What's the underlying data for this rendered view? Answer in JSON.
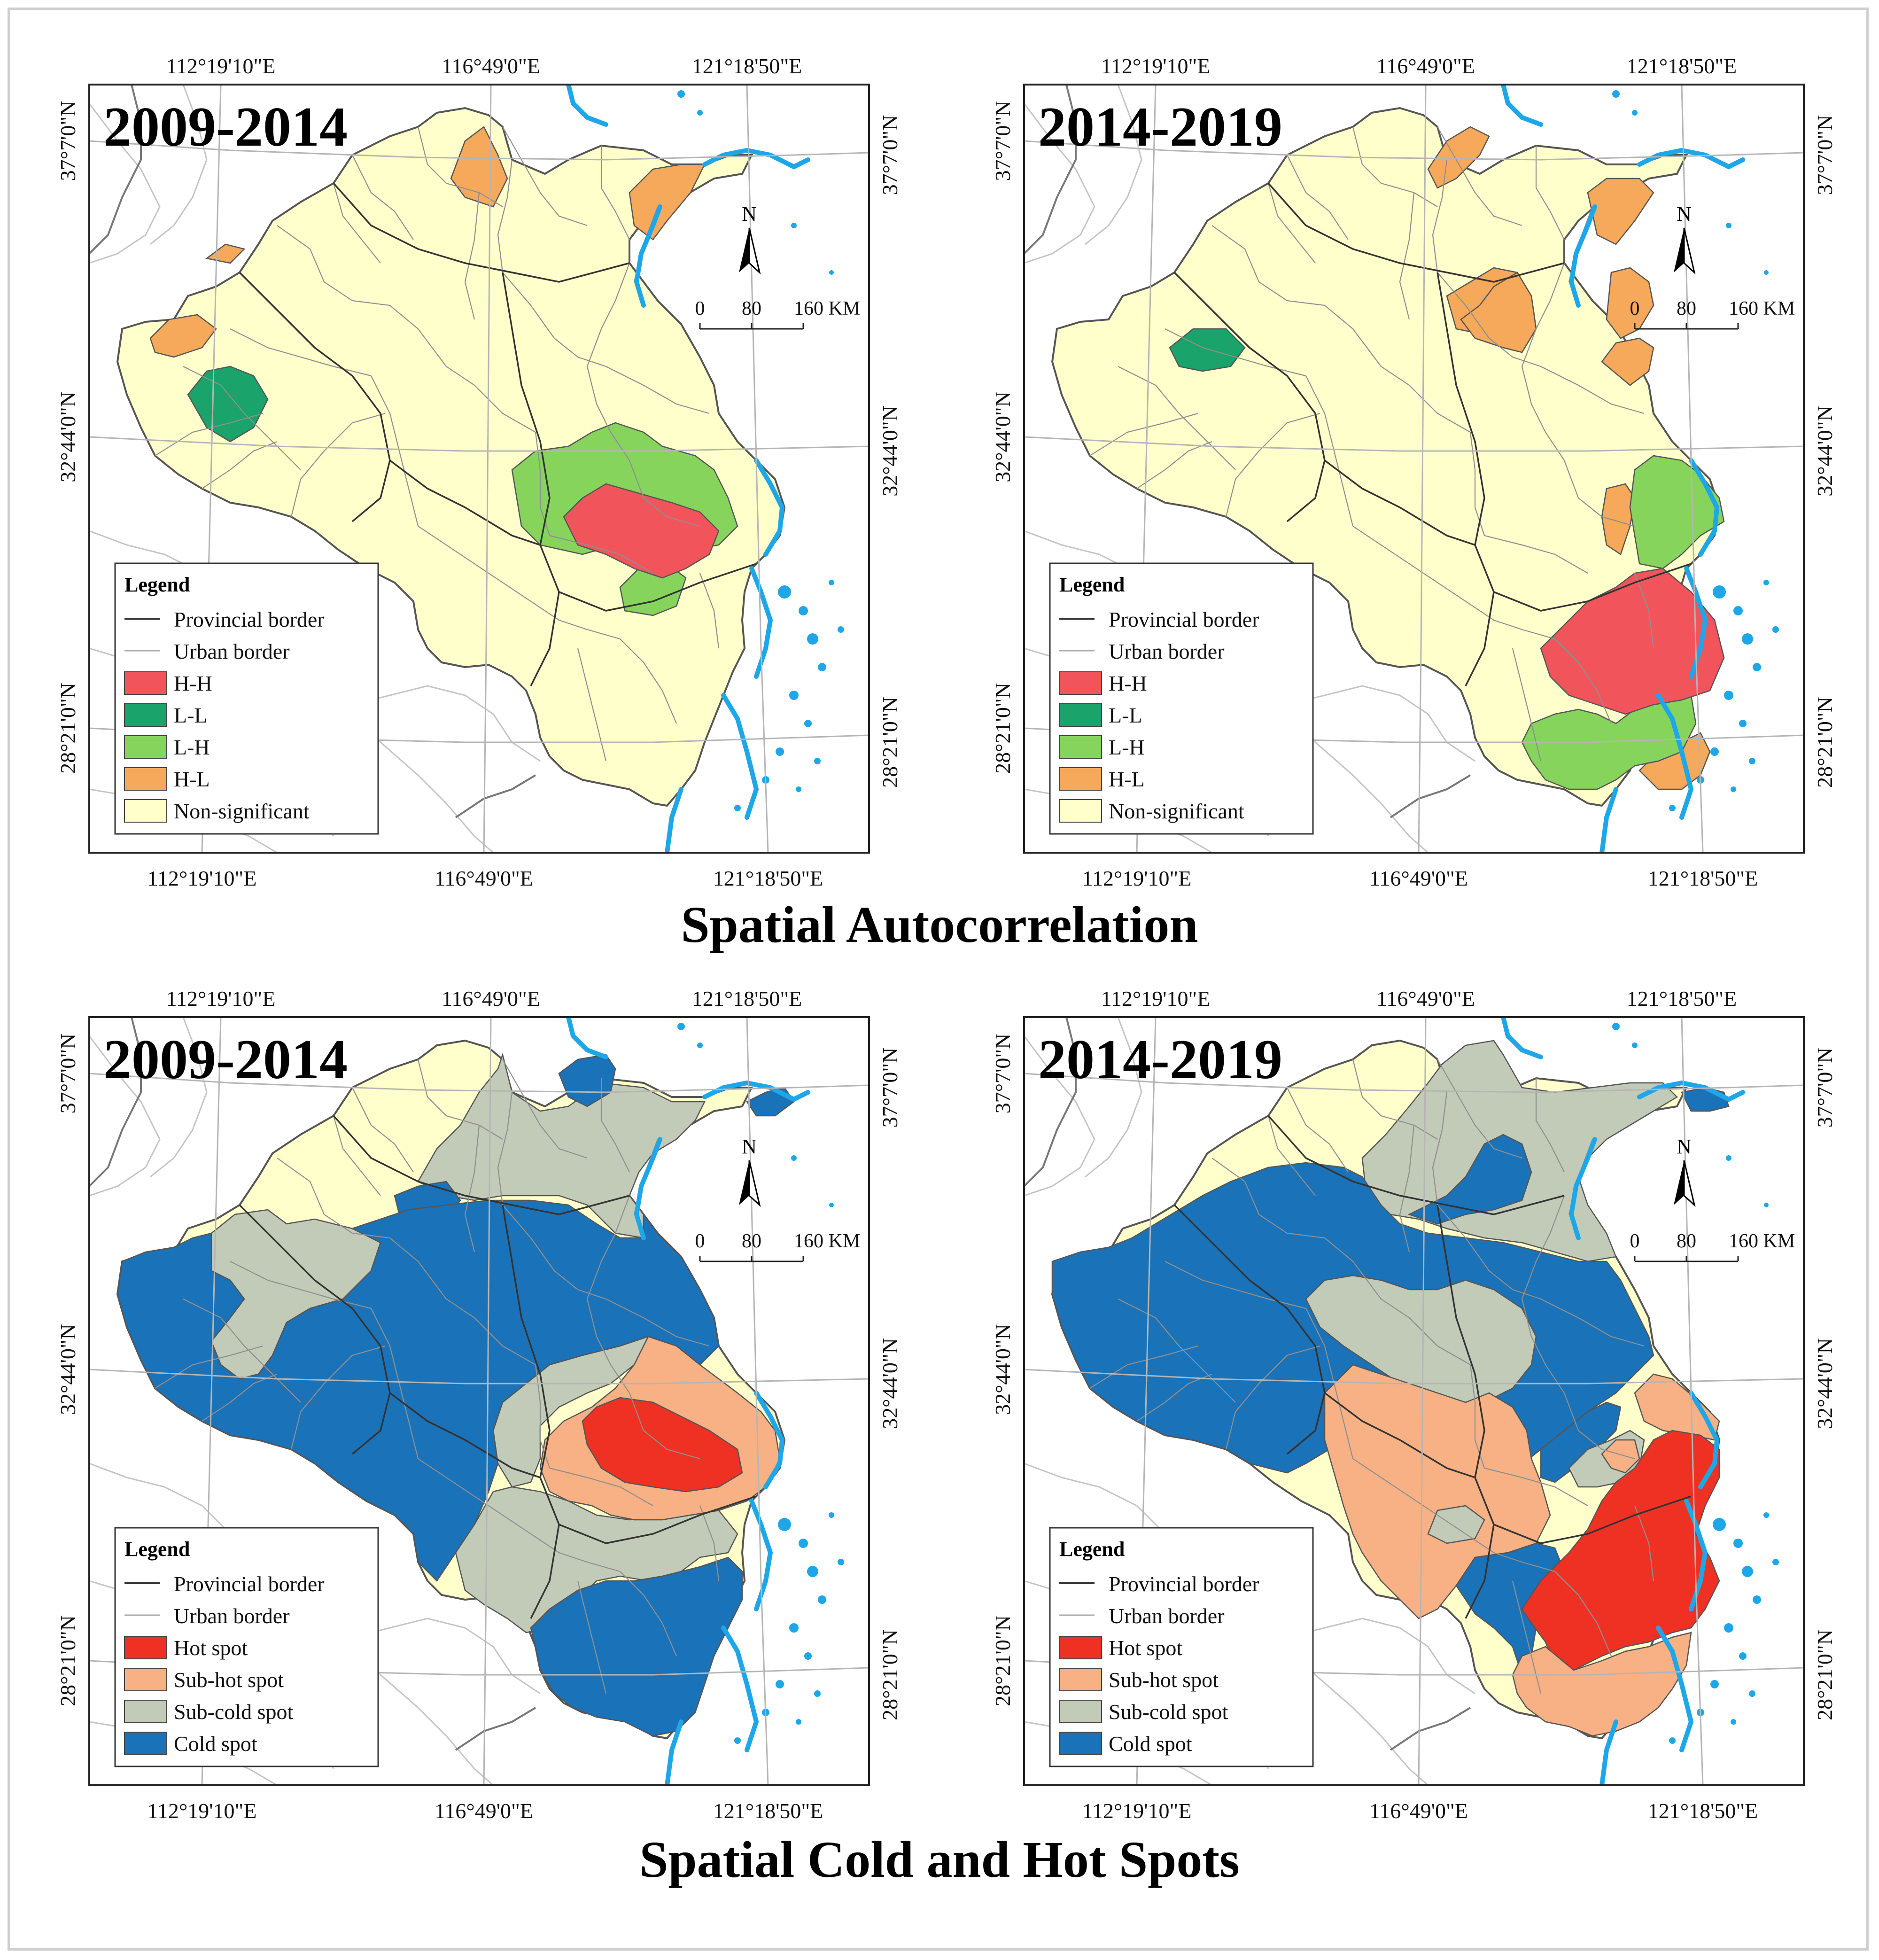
{
  "colors": {
    "frame": "#cfcfcf",
    "land": "#ffffcc",
    "outside": "#ffffff",
    "sea": "#1ea7e8",
    "hh": "#f2545b",
    "ll": "#1aa36a",
    "lh": "#86d45c",
    "hl": "#f6a95a",
    "hot": "#ef3124",
    "subhot": "#f7b184",
    "subcold": "#c2cbb8",
    "cold": "#1a72b9"
  },
  "graticule": {
    "top_lons": [
      "112°19'10\"E",
      "116°49'0\"E",
      "121°18'50\"E"
    ],
    "bottom_lons": [
      "112°19'10\"E",
      "116°49'0\"E",
      "121°18'50\"E"
    ],
    "lats": [
      "37°7'0\"N",
      "32°44'0\"N",
      "28°21'0\"N"
    ]
  },
  "scalebar": {
    "north": "N",
    "t0": "0",
    "t80": "80",
    "t160": "160 KM"
  },
  "sections": {
    "autocorrelation": "Spatial Autocorrelation",
    "hotspots": "Spatial Cold and Hot Spots"
  },
  "panels": {
    "auto_2009": {
      "period": "2009-2014",
      "legend": {
        "title": "Legend",
        "items": [
          {
            "kind": "line",
            "label": "Provincial border",
            "color": "#333333"
          },
          {
            "kind": "line",
            "label": "Urban border",
            "color": "#aaaaaa"
          },
          {
            "kind": "fill",
            "label": "H-H",
            "color": "#f2545b"
          },
          {
            "kind": "fill",
            "label": "L-L",
            "color": "#1aa36a"
          },
          {
            "kind": "fill",
            "label": "L-H",
            "color": "#86d45c"
          },
          {
            "kind": "fill",
            "label": "H-L",
            "color": "#f6a95a"
          },
          {
            "kind": "fill",
            "label": "Non-significant",
            "color": "#ffffcc"
          }
        ]
      }
    },
    "auto_2014": {
      "period": "2014-2019",
      "legend": {
        "title": "Legend",
        "items": [
          {
            "kind": "line",
            "label": "Provincial border",
            "color": "#333333"
          },
          {
            "kind": "line",
            "label": "Urban border",
            "color": "#aaaaaa"
          },
          {
            "kind": "fill",
            "label": "H-H",
            "color": "#f2545b"
          },
          {
            "kind": "fill",
            "label": "L-L",
            "color": "#1aa36a"
          },
          {
            "kind": "fill",
            "label": "L-H",
            "color": "#86d45c"
          },
          {
            "kind": "fill",
            "label": "H-L",
            "color": "#f6a95a"
          },
          {
            "kind": "fill",
            "label": "Non-significant",
            "color": "#ffffcc"
          }
        ]
      }
    },
    "hot_2009": {
      "period": "2009-2014",
      "legend": {
        "title": "Legend",
        "items": [
          {
            "kind": "line",
            "label": "Provincial border",
            "color": "#333333"
          },
          {
            "kind": "line",
            "label": "Urban border",
            "color": "#aaaaaa"
          },
          {
            "kind": "fill",
            "label": "Hot spot",
            "color": "#ef3124"
          },
          {
            "kind": "fill",
            "label": "Sub-hot spot",
            "color": "#f7b184"
          },
          {
            "kind": "fill",
            "label": "Sub-cold spot",
            "color": "#c2cbb8"
          },
          {
            "kind": "fill",
            "label": "Cold spot",
            "color": "#1a72b9"
          }
        ]
      }
    },
    "hot_2014": {
      "period": "2014-2019",
      "legend": {
        "title": "Legend",
        "items": [
          {
            "kind": "line",
            "label": "Provincial border",
            "color": "#333333"
          },
          {
            "kind": "line",
            "label": "Urban border",
            "color": "#aaaaaa"
          },
          {
            "kind": "fill",
            "label": "Hot spot",
            "color": "#ef3124"
          },
          {
            "kind": "fill",
            "label": "Sub-hot spot",
            "color": "#f7b184"
          },
          {
            "kind": "fill",
            "label": "Sub-cold spot",
            "color": "#c2cbb8"
          },
          {
            "kind": "fill",
            "label": "Cold spot",
            "color": "#1a72b9"
          }
        ]
      }
    }
  }
}
